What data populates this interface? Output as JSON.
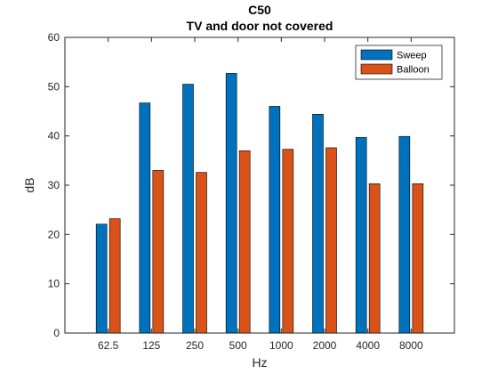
{
  "chart_data": {
    "type": "bar",
    "title": "C50",
    "subtitle": "TV and door not covered",
    "xlabel": "Hz",
    "ylabel": "dB",
    "ylim": [
      0,
      60
    ],
    "yticks": [
      0,
      10,
      20,
      30,
      40,
      50,
      60
    ],
    "categories": [
      "62.5",
      "125",
      "250",
      "500",
      "1000",
      "2000",
      "4000",
      "8000"
    ],
    "series": [
      {
        "name": "Sweep",
        "color": "#0072BD",
        "values": [
          22.1,
          46.7,
          50.5,
          52.7,
          46.0,
          44.4,
          39.7,
          39.9
        ]
      },
      {
        "name": "Balloon",
        "color": "#D95319",
        "values": [
          23.2,
          33.0,
          32.6,
          37.0,
          37.3,
          37.6,
          30.3,
          30.3
        ]
      }
    ],
    "grid": false,
    "legend": "top-right"
  }
}
